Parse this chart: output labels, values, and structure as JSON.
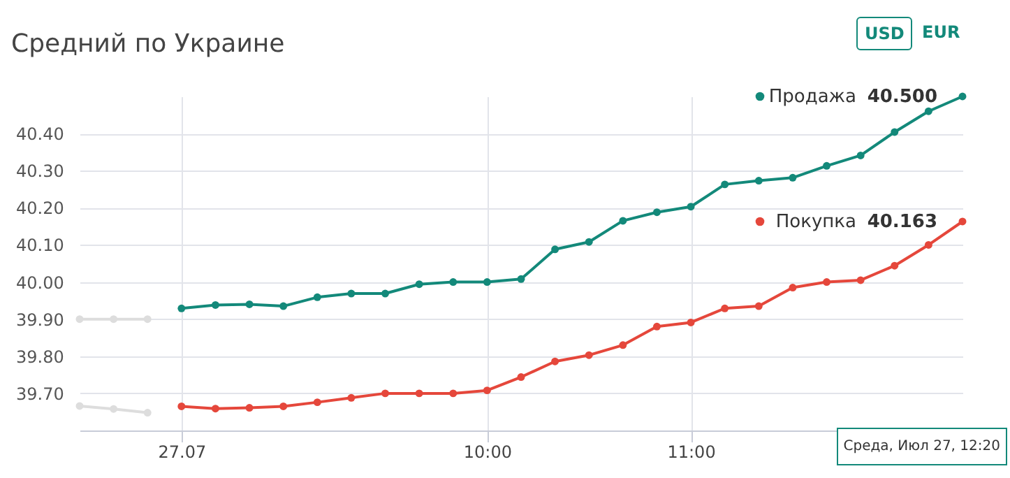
{
  "chart_data": {
    "type": "line",
    "title": "Средний по Украине",
    "categories": [
      null,
      null,
      null,
      "27.07",
      null,
      null,
      null,
      null,
      null,
      null,
      null,
      null,
      "10:00",
      null,
      null,
      null,
      null,
      null,
      "11:00",
      null,
      null,
      null,
      null,
      null,
      null,
      null,
      null
    ],
    "series": [
      {
        "color": "#dddddd",
        "values": [
          39.9,
          39.9,
          39.9,
          null,
          null,
          null,
          null,
          null,
          null,
          null,
          null,
          null,
          null,
          null,
          null,
          null,
          null,
          null,
          null,
          null,
          null,
          null,
          null,
          null,
          null,
          null,
          null
        ]
      },
      {
        "color": "#dddddd",
        "values": [
          39.666,
          39.658,
          39.648,
          null,
          null,
          null,
          null,
          null,
          null,
          null,
          null,
          null,
          null,
          null,
          null,
          null,
          null,
          null,
          null,
          null,
          null,
          null,
          null,
          null,
          null,
          null,
          null
        ]
      },
      {
        "name": "Продажа",
        "color": "#13897a",
        "values": [
          null,
          null,
          null,
          39.929,
          39.938,
          39.94,
          39.935,
          39.959,
          39.969,
          39.969,
          39.994,
          40.0,
          40.0,
          40.008,
          40.088,
          40.108,
          40.165,
          40.188,
          40.203,
          40.263,
          40.273,
          40.281,
          40.313,
          40.341,
          40.404,
          40.46,
          40.5
        ],
        "value_labels": [
          null,
          null,
          null,
          null,
          null,
          null,
          null,
          null,
          null,
          null,
          null,
          null,
          null,
          null,
          null,
          null,
          null,
          null,
          null,
          null,
          null,
          null,
          null,
          null,
          null,
          null,
          "40.500"
        ]
      },
      {
        "name": "Покупка",
        "color": "#e5473b",
        "values": [
          null,
          null,
          null,
          39.665,
          39.659,
          39.661,
          39.665,
          39.676,
          39.688,
          39.7,
          39.7,
          39.7,
          39.708,
          39.744,
          39.786,
          39.803,
          39.83,
          39.88,
          39.891,
          39.929,
          39.935,
          39.985,
          40.0,
          40.005,
          40.044,
          40.1,
          40.163
        ],
        "value_labels": [
          null,
          null,
          null,
          null,
          null,
          null,
          null,
          null,
          null,
          null,
          null,
          null,
          null,
          null,
          null,
          null,
          null,
          null,
          null,
          null,
          null,
          null,
          null,
          null,
          null,
          null,
          "40.163"
        ]
      }
    ],
    "ylim": [
      39.6,
      40.5
    ],
    "yticks": [
      "39.70",
      "39.80",
      "39.90",
      "40.00",
      "40.10",
      "40.20",
      "40.30",
      "40.40"
    ],
    "grid": true,
    "legend": "top right",
    "marker": "circle",
    "line_style": "solid",
    "annotations": [
      "USD",
      "EUR",
      "Среда, Июл 27, 12:20"
    ]
  }
}
